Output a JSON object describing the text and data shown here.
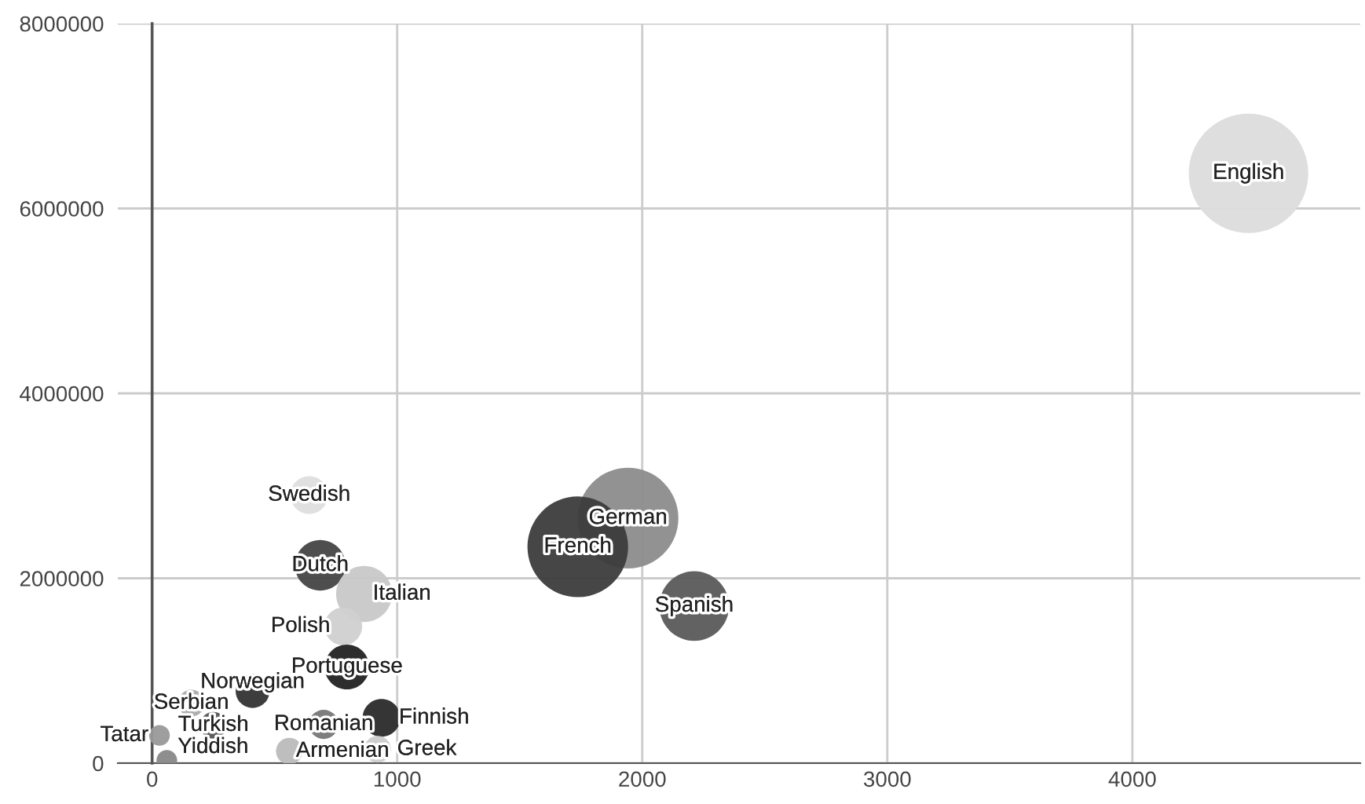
{
  "chart_data": {
    "type": "bubble",
    "x": [
      4474,
      1942,
      1737,
      2212,
      641,
      686,
      865,
      780,
      795,
      410,
      160,
      250,
      936,
      700,
      30,
      560,
      920,
      60
    ],
    "series": [
      {
        "values": [
          6380000,
          2650000,
          2340000,
          1700000,
          2900000,
          2140000,
          1830000,
          1480000,
          1040000,
          780000,
          650000,
          410000,
          490000,
          420000,
          300000,
          130000,
          150000,
          30000
        ],
        "sizes": [
          1,
          0.71,
          0.71,
          0.34,
          0.1,
          0.18,
          0.22,
          0.1,
          0.14,
          0.08,
          0.05,
          0.05,
          0.1,
          0.06,
          0.03,
          0.05,
          0.05,
          0.03
        ],
        "colors": [
          "#dcdcdc",
          "#8c8c8c",
          "#3c3c3c",
          "#5a5a5a",
          "#dedede",
          "#444444",
          "#c8c8c8",
          "#d0d0d0",
          "#222222",
          "#333333",
          "#aaaaaa",
          "#555555",
          "#2a2a2a",
          "#777777",
          "#999999",
          "#bbbbbb",
          "#cccccc",
          "#888888"
        ]
      }
    ],
    "annotations": [
      {
        "text": "English",
        "x": 4474,
        "y": 6380000
      },
      {
        "text": "German",
        "x": 1942,
        "y": 2650000
      },
      {
        "text": "French",
        "x": 1737,
        "y": 2340000
      },
      {
        "text": "Spanish",
        "x": 2212,
        "y": 1700000
      },
      {
        "text": "Swedish",
        "x": 641,
        "y": 2900000
      },
      {
        "text": "Dutch",
        "x": 686,
        "y": 2140000
      },
      {
        "text": "Italian",
        "x": 865,
        "y": 1830000
      },
      {
        "text": "Polish",
        "x": 780,
        "y": 1480000
      },
      {
        "text": "Portuguese",
        "x": 795,
        "y": 1040000
      },
      {
        "text": "Norwegian",
        "x": 410,
        "y": 780000
      },
      {
        "text": "Serbian",
        "x": 160,
        "y": 650000
      },
      {
        "text": "Turkish",
        "x": 250,
        "y": 410000
      },
      {
        "text": "Finnish",
        "x": 936,
        "y": 490000
      },
      {
        "text": "Romanian",
        "x": 700,
        "y": 420000
      },
      {
        "text": "Tatar",
        "x": 30,
        "y": 300000
      },
      {
        "text": "Armenian",
        "x": 560,
        "y": 130000
      },
      {
        "text": "Greek",
        "x": 920,
        "y": 150000
      },
      {
        "text": "Yiddish",
        "x": 60,
        "y": 30000
      }
    ],
    "xlim": [
      -140,
      4930
    ],
    "xticks": [
      0,
      1000,
      2000,
      3000,
      4000
    ],
    "ylim": [
      0,
      8000000
    ],
    "yticks": [
      0,
      2000000,
      4000000,
      6000000,
      8000000
    ],
    "grid": true,
    "legend": false
  }
}
